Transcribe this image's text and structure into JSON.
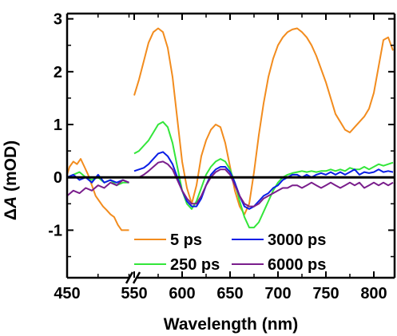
{
  "chart_data": {
    "type": "line",
    "xlabel": "Wavelength (nm)",
    "ylabel_prefix": "Δ",
    "ylabel_italic": "A",
    "ylabel_suffix": " (mOD)",
    "x_ticks": [
      "450",
      "550",
      "600",
      "650",
      "700",
      "750",
      "800"
    ],
    "y_ticks": [
      "3",
      "2",
      "1",
      "0",
      "-1"
    ],
    "xlim": [
      450,
      820
    ],
    "ylim": [
      -1.9,
      3.1
    ],
    "axis_break": "between 500 and 550 nm",
    "zero_line": 0,
    "legend_position": "bottom-center",
    "series": [
      {
        "name": "5 ps",
        "color": "#f28c1e",
        "segments": [
          {
            "x": [
              450,
              452,
              455,
              458,
              461,
              464,
              467,
              470,
              473,
              476,
              479,
              482,
              485,
              488,
              491,
              494,
              497,
              500
            ],
            "y": [
              0.05,
              0.2,
              0.3,
              0.25,
              0.35,
              0.2,
              0.05,
              -0.15,
              -0.35,
              -0.45,
              -0.55,
              -0.62,
              -0.7,
              -0.75,
              -0.9,
              -1.0,
              -1.0,
              -1.0
            ]
          },
          {
            "x": [
              550,
              555,
              560,
              565,
              570,
              575,
              580,
              585,
              590,
              595,
              600,
              605,
              610,
              615,
              620,
              625,
              630,
              635,
              640,
              645,
              650,
              655,
              660,
              665,
              670,
              675,
              680,
              685,
              690,
              695,
              700,
              705,
              710,
              715,
              720,
              725,
              730,
              735,
              740,
              745,
              750,
              755,
              760,
              765,
              770,
              775,
              780,
              785,
              790,
              795,
              800,
              805,
              810,
              815,
              820
            ],
            "y": [
              1.55,
              1.85,
              2.2,
              2.55,
              2.75,
              2.82,
              2.75,
              2.45,
              1.9,
              1.1,
              0.3,
              -0.2,
              -0.5,
              -0.15,
              0.4,
              0.7,
              0.9,
              1.0,
              0.95,
              0.65,
              0.2,
              -0.25,
              -0.55,
              -0.7,
              -0.5,
              0.1,
              0.8,
              1.4,
              1.9,
              2.25,
              2.5,
              2.65,
              2.75,
              2.8,
              2.82,
              2.75,
              2.65,
              2.5,
              2.3,
              2.05,
              1.8,
              1.5,
              1.2,
              1.05,
              0.9,
              0.85,
              0.95,
              1.05,
              1.15,
              1.3,
              1.6,
              2.1,
              2.6,
              2.65,
              2.4
            ]
          }
        ]
      },
      {
        "name": "250 ps",
        "color": "#33e63a",
        "segments": [
          {
            "x": [
              450,
              455,
              460,
              465,
              470,
              475,
              480,
              485,
              490,
              495,
              500
            ],
            "y": [
              0.0,
              0.05,
              0.1,
              0.0,
              -0.05,
              0.0,
              -0.1,
              -0.05,
              -0.15,
              -0.1,
              -0.1
            ]
          },
          {
            "x": [
              550,
              555,
              560,
              565,
              570,
              575,
              580,
              585,
              590,
              595,
              600,
              605,
              610,
              615,
              620,
              625,
              630,
              635,
              640,
              645,
              650,
              655,
              660,
              665,
              670,
              675,
              680,
              685,
              690,
              695,
              700,
              705,
              710,
              715,
              720,
              725,
              730,
              735,
              740,
              745,
              750,
              755,
              760,
              765,
              770,
              775,
              780,
              785,
              790,
              795,
              800,
              805,
              810,
              815,
              820
            ],
            "y": [
              0.45,
              0.5,
              0.6,
              0.7,
              0.85,
              1.0,
              1.05,
              0.95,
              0.65,
              0.2,
              -0.25,
              -0.5,
              -0.6,
              -0.45,
              -0.2,
              0.05,
              0.2,
              0.3,
              0.35,
              0.3,
              0.15,
              -0.1,
              -0.45,
              -0.75,
              -0.95,
              -0.95,
              -0.85,
              -0.65,
              -0.45,
              -0.25,
              -0.1,
              0.0,
              0.05,
              0.08,
              0.1,
              0.12,
              0.1,
              0.12,
              0.1,
              0.12,
              0.12,
              0.15,
              0.12,
              0.15,
              0.12,
              0.18,
              0.15,
              0.15,
              0.2,
              0.15,
              0.2,
              0.25,
              0.22,
              0.25,
              0.28
            ]
          }
        ]
      },
      {
        "name": "3000 ps",
        "color": "#0a1ee6",
        "segments": [
          {
            "x": [
              450,
              455,
              460,
              465,
              470,
              475,
              480,
              485,
              490,
              495,
              500
            ],
            "y": [
              0.0,
              0.05,
              -0.05,
              0.0,
              -0.1,
              0.05,
              -0.1,
              -0.05,
              -0.1,
              -0.05,
              -0.1
            ]
          },
          {
            "x": [
              550,
              555,
              560,
              565,
              570,
              575,
              580,
              585,
              590,
              595,
              600,
              605,
              610,
              615,
              620,
              625,
              630,
              635,
              640,
              645,
              650,
              655,
              660,
              665,
              670,
              675,
              680,
              685,
              690,
              695,
              700,
              705,
              710,
              715,
              720,
              725,
              730,
              735,
              740,
              745,
              750,
              755,
              760,
              765,
              770,
              775,
              780,
              785,
              790,
              795,
              800,
              805,
              810,
              815,
              820
            ],
            "y": [
              0.12,
              0.15,
              0.18,
              0.25,
              0.35,
              0.45,
              0.48,
              0.4,
              0.25,
              0.0,
              -0.25,
              -0.45,
              -0.55,
              -0.55,
              -0.4,
              -0.15,
              0.05,
              0.15,
              0.2,
              0.2,
              0.1,
              -0.1,
              -0.35,
              -0.55,
              -0.6,
              -0.55,
              -0.45,
              -0.35,
              -0.3,
              -0.2,
              -0.15,
              -0.05,
              0.0,
              0.05,
              0.05,
              0.0,
              0.05,
              0.0,
              0.05,
              0.08,
              0.05,
              0.1,
              0.05,
              0.1,
              0.05,
              0.1,
              0.15,
              0.05,
              0.1,
              0.08,
              0.1,
              0.15,
              0.1,
              0.12,
              0.1
            ]
          }
        ]
      },
      {
        "name": "6000 ps",
        "color": "#7a1e8c",
        "segments": [
          {
            "x": [
              450,
              455,
              460,
              465,
              470,
              475,
              480,
              485,
              490,
              495,
              500
            ],
            "y": [
              -0.35,
              -0.25,
              -0.3,
              -0.2,
              -0.25,
              -0.15,
              -0.2,
              -0.1,
              -0.15,
              -0.05,
              -0.1
            ]
          },
          {
            "x": [
              550,
              555,
              560,
              565,
              570,
              575,
              580,
              585,
              590,
              595,
              600,
              605,
              610,
              615,
              620,
              625,
              630,
              635,
              640,
              645,
              650,
              655,
              660,
              665,
              670,
              675,
              680,
              685,
              690,
              695,
              700,
              705,
              710,
              715,
              720,
              725,
              730,
              735,
              740,
              745,
              750,
              755,
              760,
              765,
              770,
              775,
              780,
              785,
              790,
              795,
              800,
              805,
              810,
              815,
              820
            ],
            "y": [
              0.0,
              0.0,
              0.05,
              0.12,
              0.2,
              0.28,
              0.3,
              0.25,
              0.15,
              -0.05,
              -0.25,
              -0.4,
              -0.5,
              -0.5,
              -0.35,
              -0.15,
              0.0,
              0.1,
              0.15,
              0.15,
              0.05,
              -0.15,
              -0.35,
              -0.5,
              -0.55,
              -0.55,
              -0.5,
              -0.4,
              -0.35,
              -0.3,
              -0.25,
              -0.2,
              -0.2,
              -0.15,
              -0.15,
              -0.2,
              -0.15,
              -0.1,
              -0.15,
              -0.2,
              -0.15,
              -0.1,
              -0.15,
              -0.2,
              -0.15,
              -0.1,
              -0.15,
              -0.1,
              -0.2,
              -0.15,
              -0.1,
              -0.15,
              -0.1,
              -0.15,
              -0.1
            ]
          }
        ]
      }
    ]
  }
}
